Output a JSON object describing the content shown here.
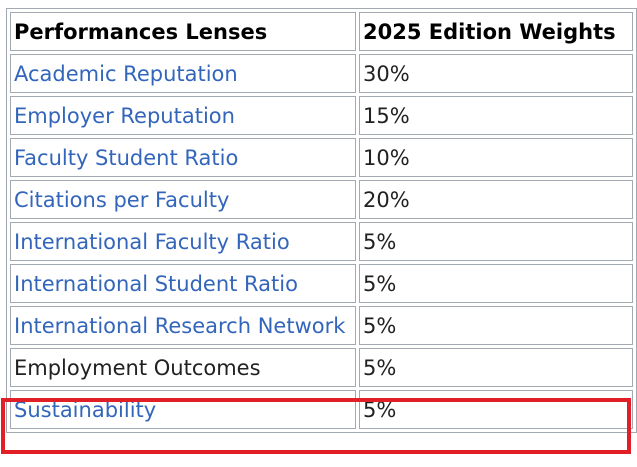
{
  "table": {
    "headers": [
      "Performances Lenses",
      "2025 Edition Weights"
    ],
    "rows": [
      {
        "lens": "Academic Reputation",
        "weight": "30%",
        "is_link": true
      },
      {
        "lens": "Employer Reputation",
        "weight": "15%",
        "is_link": true
      },
      {
        "lens": "Faculty Student Ratio",
        "weight": "10%",
        "is_link": true
      },
      {
        "lens": "Citations per Faculty",
        "weight": "20%",
        "is_link": true
      },
      {
        "lens": "International Faculty Ratio",
        "weight": "5%",
        "is_link": true
      },
      {
        "lens": "International Student Ratio",
        "weight": "5%",
        "is_link": true
      },
      {
        "lens": "International Research Network",
        "weight": "5%",
        "is_link": true
      },
      {
        "lens": "Employment Outcomes",
        "weight": "5%",
        "is_link": false
      },
      {
        "lens": "Sustainability",
        "weight": "5%",
        "is_link": true
      }
    ]
  },
  "highlighted_row": "Sustainability",
  "colors": {
    "link": "#3366bb",
    "text": "#202122",
    "border": "#a2a9b1",
    "highlight": "#e01f26"
  }
}
